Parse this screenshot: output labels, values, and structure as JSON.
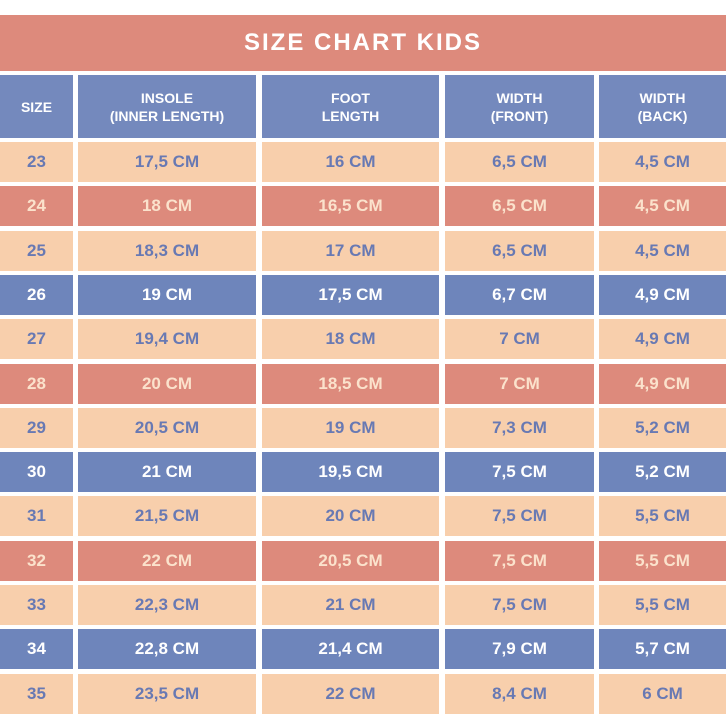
{
  "title": "SIZE CHART KIDS",
  "colors": {
    "title_bg": "#dd8a7c",
    "header_bg": "#7489bd",
    "peach": "#f8cfac",
    "coral": "#dd8a7c",
    "blue": "#6e85bb",
    "peach_text": "#6879b3",
    "coral_text": "#fbe2cc",
    "blue_text": "#ffffff"
  },
  "columns": [
    "SIZE",
    "INSOLE\n(INNER LENGTH)",
    "FOOT\nLENGTH",
    "WIDTH\n(FRONT)",
    "WIDTH\n(BACK)"
  ],
  "rows": [
    {
      "style": "peach",
      "cells": [
        "23",
        "17,5 CM",
        "16 CM",
        "6,5 CM",
        "4,5 CM"
      ]
    },
    {
      "style": "coral",
      "cells": [
        "24",
        "18 CM",
        "16,5 CM",
        "6,5 CM",
        "4,5 CM"
      ]
    },
    {
      "style": "peach",
      "cells": [
        "25",
        "18,3 CM",
        "17 CM",
        "6,5 CM",
        "4,5 CM"
      ]
    },
    {
      "style": "blue",
      "cells": [
        "26",
        "19 CM",
        "17,5 CM",
        "6,7 CM",
        "4,9 CM"
      ]
    },
    {
      "style": "peach",
      "cells": [
        "27",
        "19,4 CM",
        "18 CM",
        "7 CM",
        "4,9 CM"
      ]
    },
    {
      "style": "coral",
      "cells": [
        "28",
        "20 CM",
        "18,5 CM",
        "7 CM",
        "4,9 CM"
      ]
    },
    {
      "style": "peach",
      "cells": [
        "29",
        "20,5 CM",
        "19 CM",
        "7,3 CM",
        "5,2 CM"
      ]
    },
    {
      "style": "blue",
      "cells": [
        "30",
        "21 CM",
        "19,5 CM",
        "7,5 CM",
        "5,2 CM"
      ]
    },
    {
      "style": "peach",
      "cells": [
        "31",
        "21,5 CM",
        "20 CM",
        "7,5 CM",
        "5,5 CM"
      ]
    },
    {
      "style": "coral",
      "cells": [
        "32",
        "22 CM",
        "20,5 CM",
        "7,5 CM",
        "5,5 CM"
      ]
    },
    {
      "style": "peach",
      "cells": [
        "33",
        "22,3 CM",
        "21 CM",
        "7,5 CM",
        "5,5 CM"
      ]
    },
    {
      "style": "blue",
      "cells": [
        "34",
        "22,8 CM",
        "21,4 CM",
        "7,9 CM",
        "5,7 CM"
      ]
    },
    {
      "style": "peach",
      "cells": [
        "35",
        "23,5 CM",
        "22 CM",
        "8,4 CM",
        "6 CM"
      ]
    }
  ]
}
